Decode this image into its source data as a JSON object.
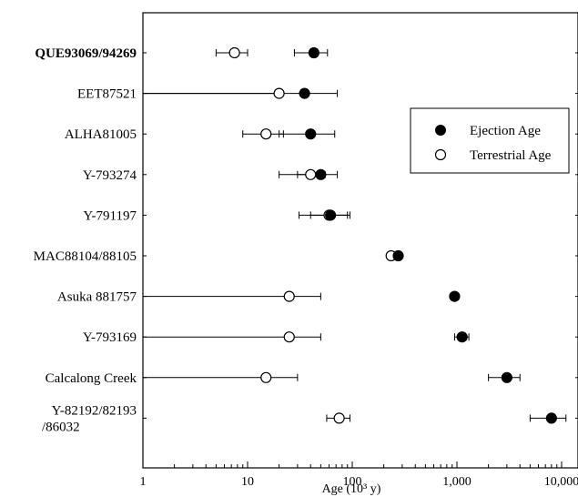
{
  "chart_data": {
    "type": "scatter",
    "title": "",
    "xlabel": "Age (10³ y)",
    "ylabel": "",
    "x_scale": "log",
    "xlim": [
      1,
      20000
    ],
    "x_ticks": [
      {
        "value": 1,
        "label": "1"
      },
      {
        "value": 10,
        "label": "10"
      },
      {
        "value": 100,
        "label": "100"
      },
      {
        "value": 1000,
        "label": "1,000"
      },
      {
        "value": 10000,
        "label": "10,000"
      }
    ],
    "grid": false,
    "legend": {
      "position": "right",
      "entries": [
        {
          "label": "Ejection Age",
          "marker": "filled-circle"
        },
        {
          "label": "Terrestrial Age",
          "marker": "open-circle"
        }
      ]
    },
    "categories": [
      {
        "label": "QUE93069/94269",
        "bold": true
      },
      {
        "label": "EET87521"
      },
      {
        "label": "ALHA81005"
      },
      {
        "label": "Y-793274"
      },
      {
        "label": "Y-791197"
      },
      {
        "label": "MAC88104/88105"
      },
      {
        "label": "Asuka 881757"
      },
      {
        "label": "Y-793169"
      },
      {
        "label": "Calcalong Creek"
      },
      {
        "label": "Y-82192/82193",
        "label2": "/86032"
      }
    ],
    "series": [
      {
        "name": "Ejection Age",
        "marker": "filled",
        "points": [
          {
            "value": 43,
            "low": 28,
            "high": 58
          },
          {
            "value": 35,
            "low": 0,
            "high": 72
          },
          {
            "value": 40,
            "low": 20,
            "high": 68
          },
          {
            "value": 50,
            "low": 30,
            "high": 72
          },
          {
            "value": 62,
            "low": 40,
            "high": 90
          },
          {
            "value": 275
          },
          {
            "value": 950
          },
          {
            "value": 1120,
            "low": 950,
            "high": 1300
          },
          {
            "value": 3000,
            "low": 2000,
            "high": 4000
          },
          {
            "value": 8000,
            "low": 5000,
            "high": 11000
          }
        ]
      },
      {
        "name": "Terrestrial Age",
        "marker": "open",
        "points": [
          {
            "value": 7.5,
            "low": 5,
            "high": 10
          },
          {
            "value": 20,
            "low": 0,
            "high": 20
          },
          {
            "value": 15,
            "low": 9,
            "high": 22
          },
          {
            "value": 40,
            "low": 20,
            "high": 55
          },
          {
            "value": 60,
            "low": 31,
            "high": 95
          },
          {
            "value": 235
          },
          {
            "value": 25,
            "low": 0,
            "high": 50
          },
          {
            "value": 25,
            "low": 0,
            "high": 50
          },
          {
            "value": 15,
            "low": 0,
            "high": 30
          },
          {
            "value": 75,
            "low": 57,
            "high": 95
          }
        ]
      }
    ]
  }
}
